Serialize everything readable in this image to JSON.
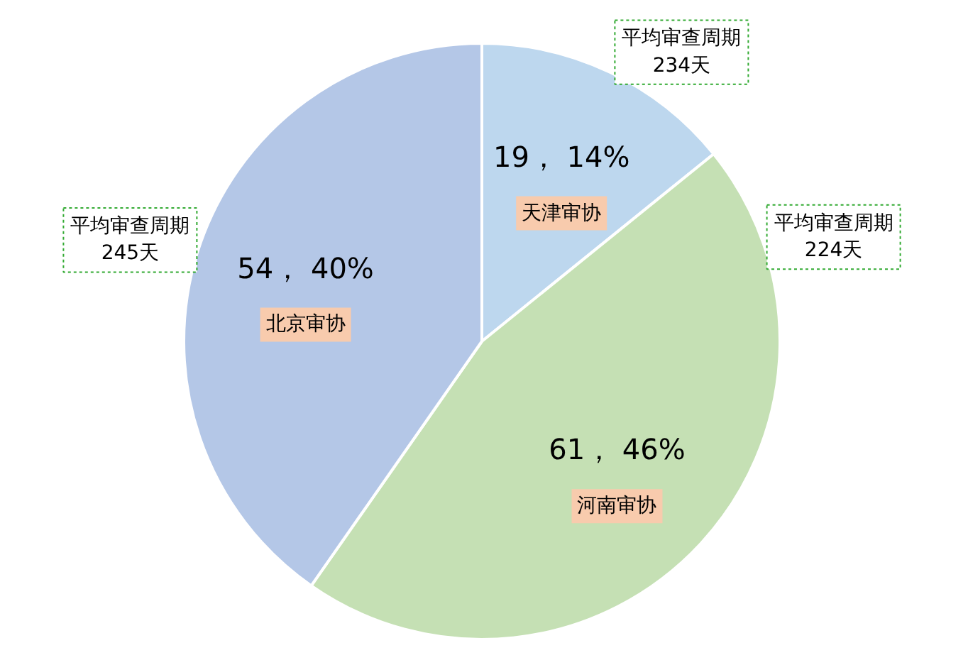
{
  "chart_data": {
    "type": "pie",
    "categories": [
      "天津审协",
      "河南审协",
      "北京审协"
    ],
    "values": [
      19,
      61,
      54
    ],
    "colors": [
      "#bdd7ee",
      "#c5e0b4",
      "#b4c7e7"
    ],
    "value_labels": [
      "19， 14%",
      "61， 46%",
      "54， 40%"
    ],
    "annotations": [
      "平均审查周期\n234天",
      "平均审查周期\n224天",
      "平均审查周期\n245天"
    ]
  }
}
